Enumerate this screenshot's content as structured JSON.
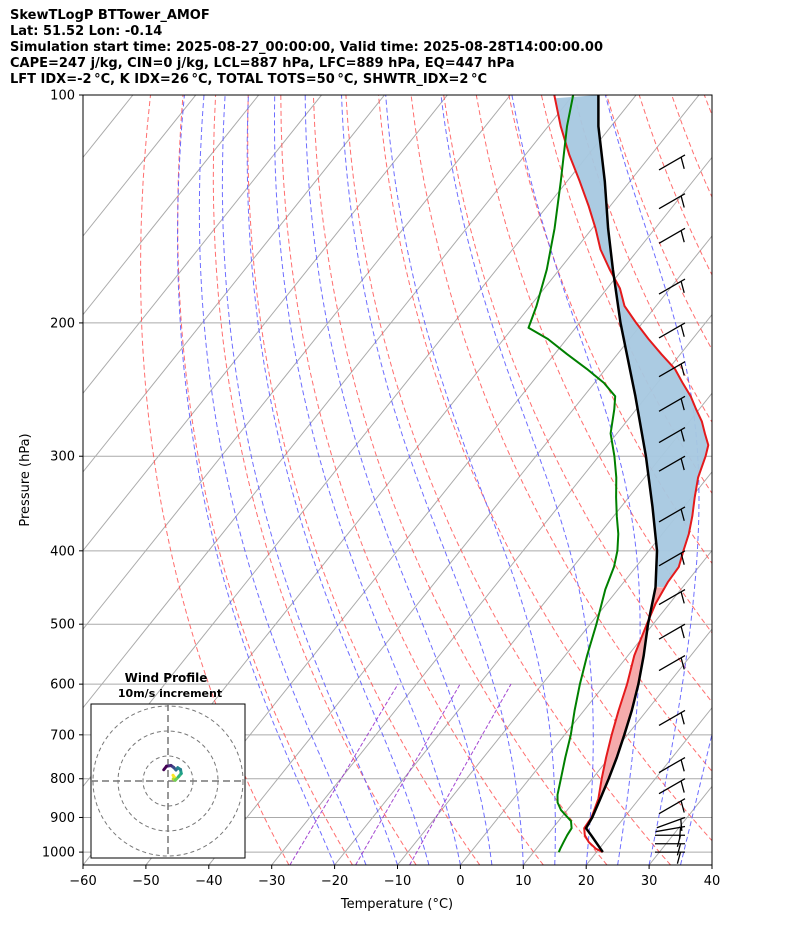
{
  "header": {
    "title": "SkewTLogP BTTower_AMOF",
    "location": "Lat: 51.52   Lon: -0.14",
    "times": "Simulation start time: 2025-08-27_00:00:00, Valid time: 2025-08-28T14:00:00.00",
    "indices1": "CAPE=247 j/kg, CIN=0 j/kg, LCL=887 hPa, LFC=889 hPa, EQ=447 hPa",
    "indices2": "LFT IDX=-2 °C, K IDX=26 °C, TOTAL TOTS=50 °C, SHWTR_IDX=2 °C"
  },
  "colors": {
    "temperature": "#e41a1c",
    "dewpoint": "#008000",
    "parcel": "#000000",
    "cape_fill": "#f4a6a8",
    "cin_fill": "#a6c8e0",
    "dry_adiabat": "#ff5555",
    "moist_adiabat": "#5555ff",
    "mixing_ratio": "#9933cc",
    "isotherm": "#aaaaaa"
  },
  "chart_data": {
    "type": "skewt",
    "xlabel": "Temperature ($^\\circ$C)",
    "ylabel": "Pressure (hPa)",
    "xlim": [
      -60,
      40
    ],
    "ylim": [
      1040,
      100
    ],
    "x_ticks": [
      "−60",
      "−50",
      "−40",
      "−30",
      "−20",
      "−10",
      "0",
      "10",
      "20",
      "30",
      "40"
    ],
    "x_tick_values": [
      -60,
      -50,
      -40,
      -30,
      -20,
      -10,
      0,
      10,
      20,
      30,
      40
    ],
    "y_ticks": [
      "1000",
      "900",
      "800",
      "700",
      "600",
      "500",
      "400",
      "300",
      "200",
      "100"
    ],
    "y_tick_values": [
      1000,
      900,
      800,
      700,
      600,
      500,
      400,
      300,
      200,
      100
    ],
    "temperature_profile": [
      [
        1000,
        21
      ],
      [
        990,
        19.5
      ],
      [
        970,
        17.5
      ],
      [
        950,
        16
      ],
      [
        930,
        15
      ],
      [
        900,
        14.8
      ],
      [
        850,
        13.5
      ],
      [
        800,
        11.5
      ],
      [
        750,
        9.5
      ],
      [
        700,
        7.5
      ],
      [
        650,
        5.5
      ],
      [
        600,
        3.5
      ],
      [
        550,
        1.0
      ],
      [
        500,
        -1.0
      ],
      [
        470,
        -2.2
      ],
      [
        440,
        -3.0
      ],
      [
        420,
        -3.2
      ],
      [
        400,
        -4.5
      ],
      [
        380,
        -5.8
      ],
      [
        360,
        -7.5
      ],
      [
        340,
        -9.5
      ],
      [
        320,
        -11.5
      ],
      [
        300,
        -13.0
      ],
      [
        290,
        -14.0
      ],
      [
        280,
        -16.0
      ],
      [
        270,
        -18.0
      ],
      [
        260,
        -20.5
      ],
      [
        250,
        -23.0
      ],
      [
        240,
        -26.0
      ],
      [
        230,
        -29.0
      ],
      [
        220,
        -33.0
      ],
      [
        210,
        -37.0
      ],
      [
        200,
        -41.0
      ],
      [
        190,
        -45.0
      ],
      [
        180,
        -48.0
      ],
      [
        170,
        -52.0
      ],
      [
        160,
        -56.0
      ],
      [
        150,
        -59.5
      ],
      [
        140,
        -63.5
      ],
      [
        130,
        -68.0
      ],
      [
        120,
        -73.0
      ],
      [
        110,
        -78.0
      ],
      [
        100,
        -83.0
      ]
    ],
    "dewpoint_profile": [
      [
        1000,
        14
      ],
      [
        990,
        13.8
      ],
      [
        970,
        13.5
      ],
      [
        950,
        13.2
      ],
      [
        930,
        13.0
      ],
      [
        910,
        12.0
      ],
      [
        880,
        9.0
      ],
      [
        860,
        7.5
      ],
      [
        840,
        6.5
      ],
      [
        800,
        5.0
      ],
      [
        750,
        3.0
      ],
      [
        700,
        1.0
      ],
      [
        650,
        -1.5
      ],
      [
        600,
        -4.0
      ],
      [
        550,
        -6.5
      ],
      [
        500,
        -9.0
      ],
      [
        450,
        -12.0
      ],
      [
        420,
        -13.5
      ],
      [
        400,
        -15.0
      ],
      [
        380,
        -17.0
      ],
      [
        360,
        -19.5
      ],
      [
        340,
        -22.0
      ],
      [
        320,
        -24.5
      ],
      [
        300,
        -27.5
      ],
      [
        280,
        -31.0
      ],
      [
        260,
        -33.5
      ],
      [
        250,
        -35.0
      ],
      [
        240,
        -38.5
      ],
      [
        230,
        -43.0
      ],
      [
        220,
        -48.0
      ],
      [
        210,
        -53.0
      ],
      [
        203,
        -57.5
      ],
      [
        190,
        -59.0
      ],
      [
        170,
        -62.0
      ],
      [
        150,
        -66.0
      ],
      [
        130,
        -71.0
      ],
      [
        110,
        -77.0
      ],
      [
        100,
        -80.0
      ]
    ],
    "parcel_profile": [
      [
        1000,
        21
      ],
      [
        950,
        17.0
      ],
      [
        930,
        15.3
      ],
      [
        900,
        14.9
      ],
      [
        850,
        13.8
      ],
      [
        800,
        12.6
      ],
      [
        750,
        11.2
      ],
      [
        700,
        9.5
      ],
      [
        650,
        7.6
      ],
      [
        600,
        5.3
      ],
      [
        550,
        2.5
      ],
      [
        500,
        -0.8
      ],
      [
        447,
        -4.3
      ],
      [
        400,
        -8.7
      ],
      [
        350,
        -15.0
      ],
      [
        300,
        -22.5
      ],
      [
        250,
        -31.8
      ],
      [
        200,
        -43.5
      ],
      [
        170,
        -51.5
      ],
      [
        150,
        -57.5
      ],
      [
        130,
        -64.0
      ],
      [
        110,
        -72.0
      ],
      [
        100,
        -76.0
      ]
    ],
    "cape_region": {
      "bottom_hpa": 889,
      "top_hpa": 447,
      "label": "CAPE=247 j/kg"
    },
    "dry_adiabat_thetas_c": [
      -30,
      -20,
      -10,
      0,
      10,
      20,
      30,
      40,
      50,
      60,
      70,
      80,
      90,
      100,
      110,
      120,
      130,
      140,
      150
    ],
    "moist_adiabat_starts_c": [
      -20,
      -15,
      -10,
      -5,
      0,
      5,
      10,
      15,
      20,
      25,
      30,
      35
    ],
    "mixing_ratio_gkg": [
      0.4,
      1.0,
      2.0
    ],
    "wind_barbs": [
      {
        "p": 1000,
        "speed_kt": 5,
        "dir_deg": 270
      },
      {
        "p": 975,
        "speed_kt": 5,
        "dir_deg": 270
      },
      {
        "p": 950,
        "speed_kt": 5,
        "dir_deg": 270
      },
      {
        "p": 925,
        "speed_kt": 5,
        "dir_deg": 260
      },
      {
        "p": 900,
        "speed_kt": 5,
        "dir_deg": 250
      },
      {
        "p": 850,
        "speed_kt": 5,
        "dir_deg": 240
      },
      {
        "p": 800,
        "speed_kt": 5,
        "dir_deg": 240
      },
      {
        "p": 750,
        "speed_kt": 5,
        "dir_deg": 240
      },
      {
        "p": 650,
        "speed_kt": 5,
        "dir_deg": 240
      },
      {
        "p": 550,
        "speed_kt": 5,
        "dir_deg": 240
      },
      {
        "p": 500,
        "speed_kt": 5,
        "dir_deg": 240
      },
      {
        "p": 450,
        "speed_kt": 5,
        "dir_deg": 240
      },
      {
        "p": 400,
        "speed_kt": 5,
        "dir_deg": 240
      },
      {
        "p": 350,
        "speed_kt": 5,
        "dir_deg": 240
      },
      {
        "p": 300,
        "speed_kt": 5,
        "dir_deg": 240
      },
      {
        "p": 275,
        "speed_kt": 5,
        "dir_deg": 240
      },
      {
        "p": 250,
        "speed_kt": 5,
        "dir_deg": 240
      },
      {
        "p": 225,
        "speed_kt": 5,
        "dir_deg": 240
      },
      {
        "p": 200,
        "speed_kt": 5,
        "dir_deg": 240
      },
      {
        "p": 175,
        "speed_kt": 5,
        "dir_deg": 240
      },
      {
        "p": 150,
        "speed_kt": 5,
        "dir_deg": 240
      },
      {
        "p": 135,
        "speed_kt": 5,
        "dir_deg": 240
      },
      {
        "p": 120,
        "speed_kt": 5,
        "dir_deg": 240
      }
    ],
    "hodograph": {
      "title": "Wind Profile",
      "subtitle": "10m/s increment",
      "ring_step_ms": 10,
      "ring_count": 3,
      "points_uv": [
        [
          2.0,
          2.3
        ],
        [
          2.6,
          1.4
        ],
        [
          2.1,
          0.8
        ],
        [
          2.9,
          0.3
        ],
        [
          4.2,
          1.7
        ],
        [
          5.3,
          3.0
        ],
        [
          5.0,
          4.6
        ],
        [
          3.9,
          5.3
        ],
        [
          3.2,
          4.4
        ],
        [
          2.3,
          5.4
        ],
        [
          1.2,
          6.2
        ],
        [
          -0.6,
          5.9
        ],
        [
          -1.7,
          4.5
        ]
      ]
    }
  }
}
